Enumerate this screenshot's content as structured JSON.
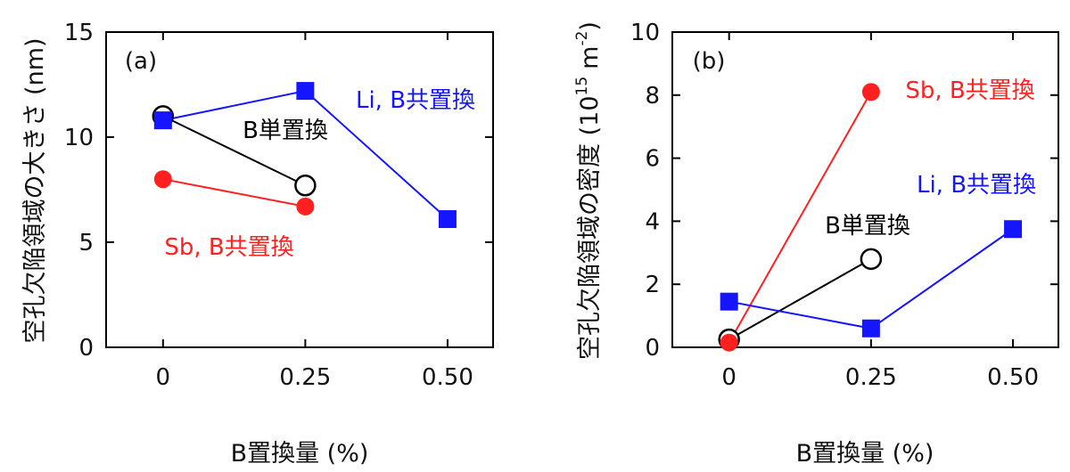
{
  "chart_data": [
    {
      "type": "line",
      "panel_label": "(a)",
      "ylabel": "空孔欠陥領域の大きさ (nm)",
      "xlabel": "B置換量 (%)",
      "ylim": [
        0,
        15
      ],
      "yticks": [
        0,
        5,
        10,
        15
      ],
      "xticks": [
        0,
        0.25,
        0.5
      ],
      "xtick_labels": [
        "0",
        "0.25",
        "0.50"
      ],
      "xlim": [
        -0.1,
        0.58
      ],
      "series": [
        {
          "name": "B単置換",
          "x": [
            0,
            0.25
          ],
          "y": [
            11.0,
            7.7
          ],
          "marker": "circle-open",
          "color": "#000000"
        },
        {
          "name": "Sb, B共置換",
          "x": [
            0,
            0.25
          ],
          "y": [
            8.0,
            6.7
          ],
          "marker": "circle-filled",
          "color": "#ff2020"
        },
        {
          "name": "Li, B共置換",
          "x": [
            0,
            0.25,
            0.5
          ],
          "y": [
            10.8,
            12.2,
            6.1
          ],
          "marker": "square-filled",
          "color": "#1515ff"
        }
      ]
    },
    {
      "type": "line",
      "panel_label": "(b)",
      "ylabel": "空孔欠陥領域の密度 (10",
      "ylabel_exp": "15",
      "ylabel_unit": "m",
      "ylabel_unit_exp": "-2",
      "ylabel_close": ")",
      "xlabel": "B置換量 (%)",
      "ylim": [
        0,
        10
      ],
      "yticks": [
        0,
        2,
        4,
        6,
        8,
        10
      ],
      "xticks": [
        0,
        0.25,
        0.5
      ],
      "xtick_labels": [
        "0",
        "0.25",
        "0.50"
      ],
      "xlim": [
        -0.1,
        0.58
      ],
      "series": [
        {
          "name": "B単置換",
          "x": [
            0,
            0.25
          ],
          "y": [
            0.25,
            2.8
          ],
          "marker": "circle-open",
          "color": "#000000"
        },
        {
          "name": "Sb, B共置換",
          "x": [
            0,
            0.25
          ],
          "y": [
            0.15,
            8.1
          ],
          "marker": "circle-filled",
          "color": "#ff2020"
        },
        {
          "name": "Li, B共置換",
          "x": [
            0,
            0.25,
            0.5
          ],
          "y": [
            1.45,
            0.6,
            3.75
          ],
          "marker": "square-filled",
          "color": "#1515ff"
        }
      ]
    }
  ]
}
